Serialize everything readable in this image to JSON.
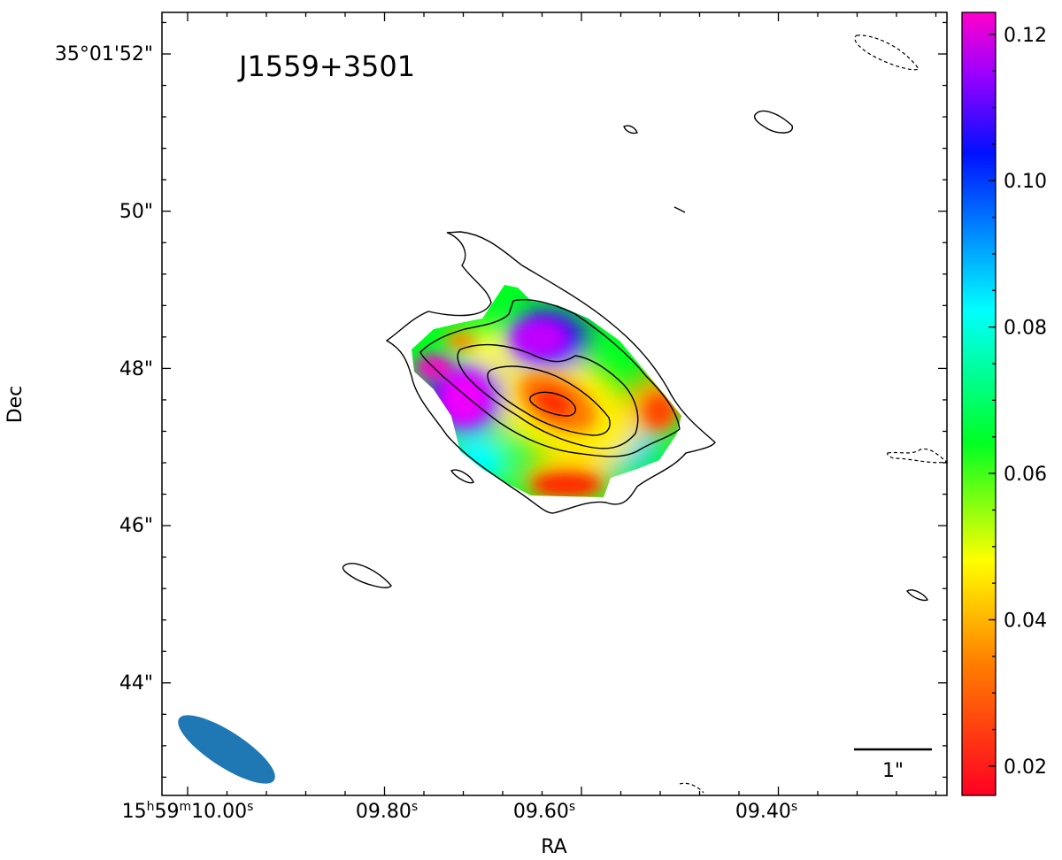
{
  "chart_data": {
    "type": "heatmap",
    "subtype": "radio image with contour overlay",
    "source_label": "J1559+3501",
    "xlabel": "RA",
    "ylabel": "Dec",
    "x_tick_labels": [
      {
        "main": "15",
        "h": "h",
        "mid": "59",
        "m": "m",
        "rest": "10.00",
        "s": "s"
      },
      {
        "main": "09.80",
        "s": "s"
      },
      {
        "main": "09.60",
        "s": "s"
      },
      {
        "main": "09.40",
        "s": "s"
      }
    ],
    "y_tick_labels": [
      "35°01'52\"",
      "50\"",
      "48\"",
      "46\"",
      "44\""
    ],
    "colorbar": {
      "colormap": "gist_rainbow_r",
      "range": [
        0.016,
        0.123
      ],
      "tick_labels": [
        "0.02",
        "0.04",
        "0.06",
        "0.08",
        "0.10",
        "0.12"
      ],
      "tick_values": [
        0.02,
        0.04,
        0.06,
        0.08,
        0.1,
        0.12
      ]
    },
    "scale_bar_label": "1\"",
    "beam_color": "#1f77b4",
    "contour_color": "#000000",
    "grid": false
  }
}
